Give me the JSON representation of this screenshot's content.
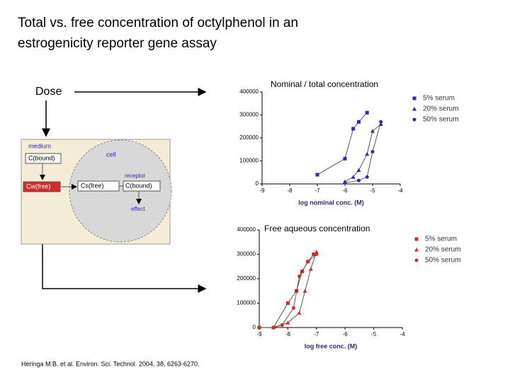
{
  "title": [
    "Total vs. free concentration of octylphenol in an",
    "estrogenicity reporter gene assay"
  ],
  "dose_label": "Dose",
  "diagram": {
    "medium": "medium",
    "bound_medium": "C(bound)",
    "cell": "cell",
    "receptor": "receptor",
    "free_water": "Cw(free)",
    "free_cell": "Cs(free)",
    "bound_cell": "C(bound)",
    "effect": "effect"
  },
  "citation": "Heringa M.B. et al. Environ. Sci. Technol. 2004, 38, 6263-6270.",
  "chart_data": [
    {
      "type": "scatter",
      "title": "Nominal / total concentration",
      "x_label": "log nominal conc. (M)",
      "xlim": [
        -9,
        -4
      ],
      "xticks": [
        -9,
        -8,
        -7,
        -6,
        -5,
        -4
      ],
      "ylim": [
        0,
        400000
      ],
      "yticks": [
        0,
        100000,
        200000,
        300000,
        400000
      ],
      "series": [
        {
          "name": "5% serum",
          "marker": "square",
          "color": "#2a2ab8",
          "x": [
            -7,
            -6,
            -5.7,
            -5.5,
            -5.2
          ],
          "values": [
            40000,
            110000,
            240000,
            270000,
            310000
          ]
        },
        {
          "name": "20% serum",
          "marker": "triangle",
          "color": "#2a2ab8",
          "x": [
            -6,
            -5.7,
            -5.5,
            -5.2,
            -5,
            -4.7
          ],
          "values": [
            10000,
            30000,
            60000,
            130000,
            230000,
            260000
          ]
        },
        {
          "name": "50% serum",
          "marker": "circle",
          "color": "#2a2ab8",
          "x": [
            -6,
            -5.5,
            -5.2,
            -5,
            -4.7
          ],
          "values": [
            5000,
            15000,
            30000,
            140000,
            270000
          ]
        }
      ]
    },
    {
      "type": "scatter",
      "title": "Free aqueous concentration",
      "x_label": "log free conc. (M)",
      "xlim": [
        -9,
        -4
      ],
      "xticks": [
        -9,
        -8,
        -7,
        -6,
        -5,
        -4
      ],
      "ylim": [
        0,
        400000
      ],
      "yticks": [
        0,
        100000,
        200000,
        300000,
        400000
      ],
      "series": [
        {
          "name": "5% serum",
          "marker": "square",
          "color": "#d42a2a",
          "x": [
            -9,
            -8.5,
            -8,
            -7.7,
            -7.5,
            -7.3,
            -7.1
          ],
          "values": [
            0,
            0,
            100000,
            150000,
            230000,
            270000,
            300000
          ]
        },
        {
          "name": "20% serum",
          "marker": "triangle",
          "color": "#d42a2a",
          "x": [
            -8.5,
            -8,
            -7.6,
            -7.4,
            -7.2,
            -7
          ],
          "values": [
            0,
            20000,
            60000,
            150000,
            240000,
            310000
          ]
        },
        {
          "name": "50% serum",
          "marker": "circle",
          "color": "#d42a2a",
          "x": [
            -9,
            -8.5,
            -8.2,
            -7.8,
            -7.6,
            -7.3,
            -7
          ],
          "values": [
            0,
            0,
            10000,
            80000,
            210000,
            270000,
            300000
          ]
        }
      ]
    }
  ]
}
